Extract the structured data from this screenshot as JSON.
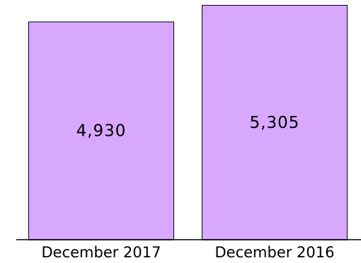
{
  "chart_data": {
    "type": "bar",
    "categories": [
      "December 2017",
      "December 2016"
    ],
    "values": [
      4930,
      5305
    ],
    "data_labels": [
      "4,930",
      "5,305"
    ],
    "title": "",
    "xlabel": "",
    "ylabel": "",
    "ylim": [
      0,
      5305
    ],
    "grid": false,
    "legend": "none",
    "bar_color": "#d7a8fd",
    "bar_edge_color": "#000000"
  }
}
